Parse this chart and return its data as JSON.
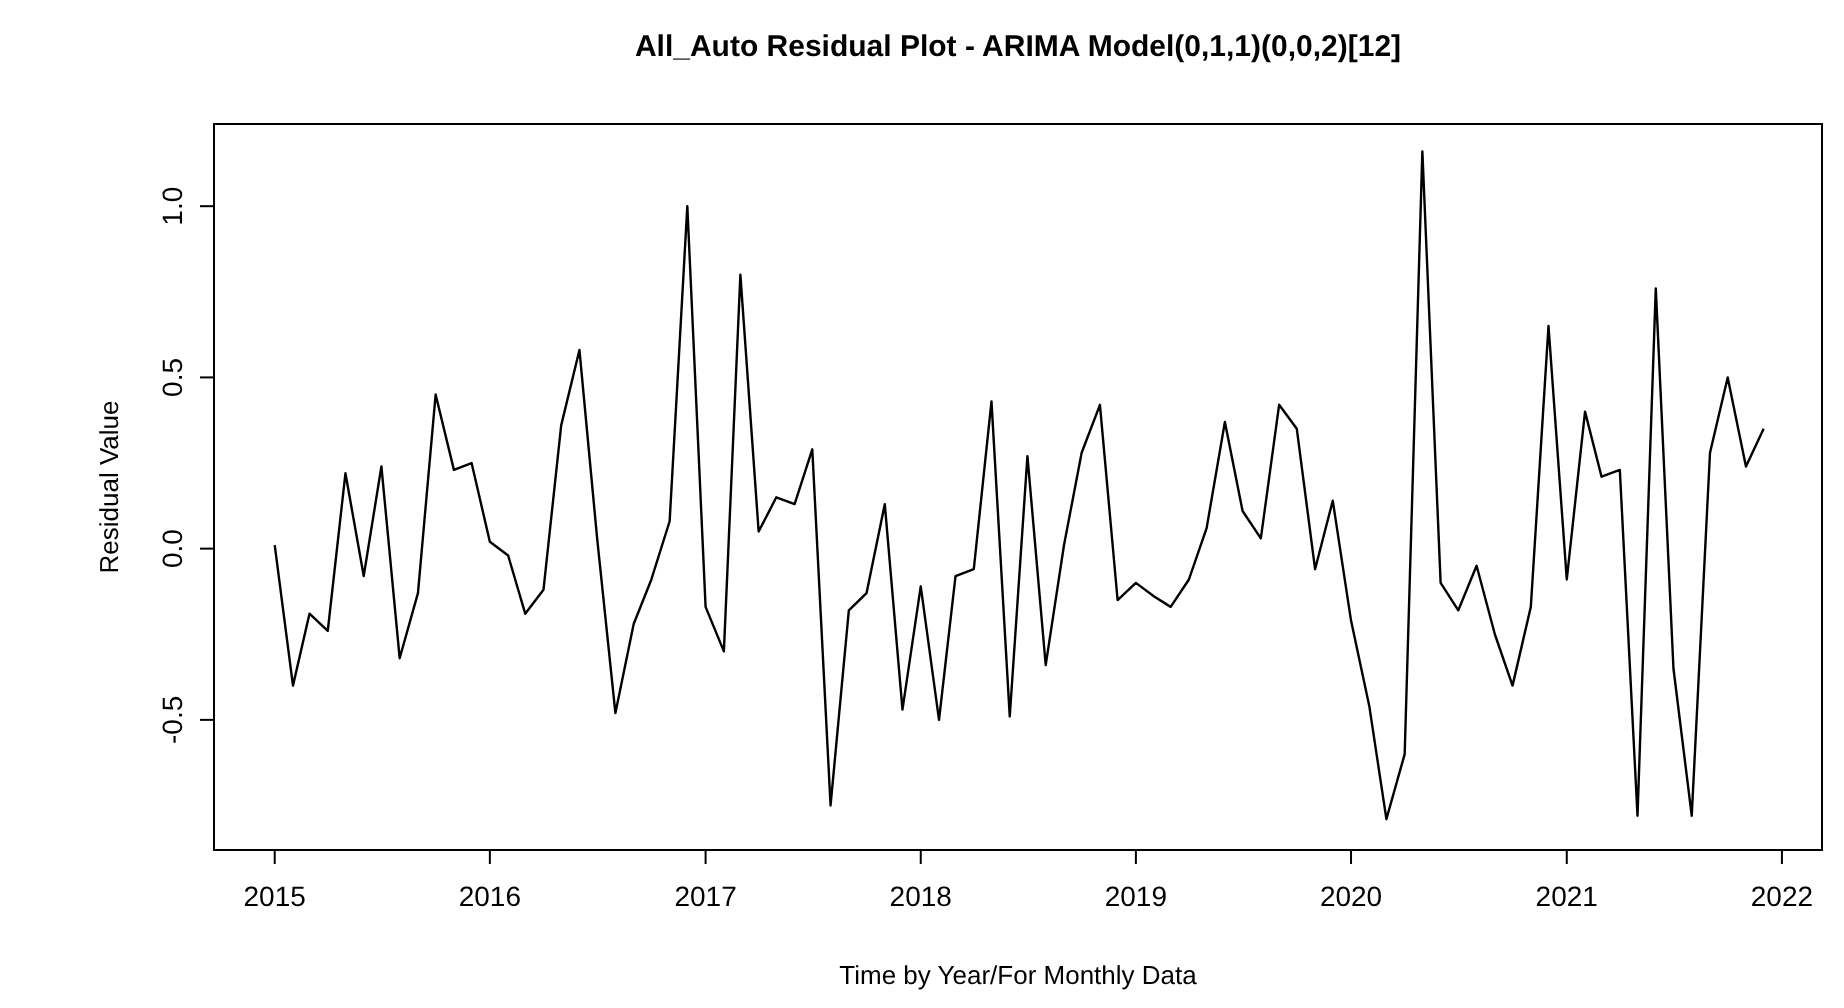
{
  "chart_data": {
    "type": "line",
    "title": "All_Auto Residual Plot - ARIMA Model(0,1,1)(0,0,2)[12]",
    "xlabel": "Time by Year/For Monthly Data",
    "ylabel": "Residual Value",
    "x": [
      "2015-01",
      "2015-02",
      "2015-03",
      "2015-04",
      "2015-05",
      "2015-06",
      "2015-07",
      "2015-08",
      "2015-09",
      "2015-10",
      "2015-11",
      "2015-12",
      "2016-01",
      "2016-02",
      "2016-03",
      "2016-04",
      "2016-05",
      "2016-06",
      "2016-07",
      "2016-08",
      "2016-09",
      "2016-10",
      "2016-11",
      "2016-12",
      "2017-01",
      "2017-02",
      "2017-03",
      "2017-04",
      "2017-05",
      "2017-06",
      "2017-07",
      "2017-08",
      "2017-09",
      "2017-10",
      "2017-11",
      "2017-12",
      "2018-01",
      "2018-02",
      "2018-03",
      "2018-04",
      "2018-05",
      "2018-06",
      "2018-07",
      "2018-08",
      "2018-09",
      "2018-10",
      "2018-11",
      "2018-12",
      "2019-01",
      "2019-02",
      "2019-03",
      "2019-04",
      "2019-05",
      "2019-06",
      "2019-07",
      "2019-08",
      "2019-09",
      "2019-10",
      "2019-11",
      "2019-12",
      "2020-01",
      "2020-02",
      "2020-03",
      "2020-04",
      "2020-05",
      "2020-06",
      "2020-07",
      "2020-08",
      "2020-09",
      "2020-10",
      "2020-11",
      "2020-12",
      "2021-01",
      "2021-02",
      "2021-03",
      "2021-04",
      "2021-05",
      "2021-06",
      "2021-07",
      "2021-08",
      "2021-09",
      "2021-10",
      "2021-11",
      "2021-12"
    ],
    "series": [
      {
        "color": "#000000",
        "values": [
          0.01,
          -0.4,
          -0.19,
          -0.24,
          0.22,
          -0.08,
          0.24,
          -0.32,
          -0.13,
          0.45,
          0.23,
          0.25,
          0.02,
          -0.02,
          -0.19,
          -0.12,
          0.36,
          0.58,
          0.03,
          -0.48,
          -0.22,
          -0.09,
          0.08,
          1.0,
          -0.17,
          -0.3,
          0.8,
          0.05,
          0.15,
          0.13,
          0.29,
          -0.75,
          -0.18,
          -0.13,
          0.13,
          -0.47,
          -0.11,
          -0.5,
          -0.08,
          -0.06,
          0.43,
          -0.49,
          0.27,
          -0.34,
          0.01,
          0.28,
          0.42,
          -0.15,
          -0.1,
          -0.14,
          -0.17,
          -0.09,
          0.06,
          0.37,
          0.11,
          0.03,
          0.42,
          0.35,
          -0.06,
          0.14,
          -0.21,
          -0.46,
          -0.79,
          -0.6,
          1.16,
          -0.1,
          -0.18,
          -0.05,
          -0.25,
          -0.4,
          -0.17,
          0.65,
          -0.09,
          0.4,
          0.21,
          0.23,
          -0.78,
          0.76,
          -0.35,
          -0.78,
          0.28,
          0.5,
          0.24,
          0.35
        ]
      }
    ],
    "xlim": [
      "2014-09-20",
      "2022-03-10"
    ],
    "xticks": [
      "2015",
      "2016",
      "2017",
      "2018",
      "2019",
      "2020",
      "2021",
      "2022"
    ],
    "ylim": [
      -0.88,
      1.24
    ],
    "yticks": [
      {
        "value": -0.5,
        "label": "-0.5"
      },
      {
        "value": 0,
        "label": "0.0"
      },
      {
        "value": 0.5,
        "label": "0.5"
      },
      {
        "value": 1,
        "label": "1.0"
      }
    ],
    "marker": "none",
    "line_style": "solid"
  }
}
